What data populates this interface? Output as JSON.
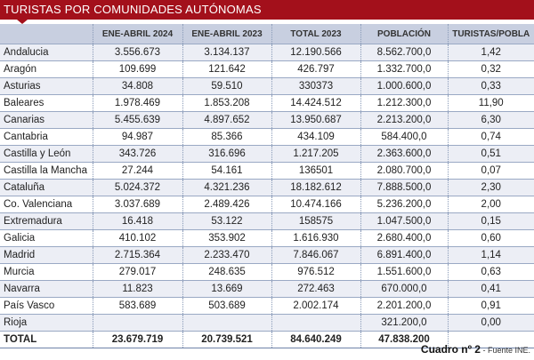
{
  "title": "TURISTAS POR COMUNIDADES AUTÓNOMAS",
  "columns": [
    "",
    "ENE-ABRIL 2024",
    "ENE-ABRIL 2023",
    "TOTAL 2023",
    "POBLACIÓN",
    "TURISTAS/POBLA"
  ],
  "rows": [
    [
      "Andalucia",
      "3.556.673",
      "3.134.137",
      "12.190.566",
      "8.562.700,0",
      "1,42"
    ],
    [
      "Aragón",
      "109.699",
      "121.642",
      "426.797",
      "1.332.700,0",
      "0,32"
    ],
    [
      "Asturias",
      "34.808",
      "59.510",
      "330373",
      "1.000.600,0",
      "0,33"
    ],
    [
      "Baleares",
      "1.978.469",
      "1.853.208",
      "14.424.512",
      "1.212.300,0",
      "11,90"
    ],
    [
      "Canarias",
      "5.455.639",
      "4.897.652",
      "13.950.687",
      "2.213.200,0",
      "6,30"
    ],
    [
      "Cantabria",
      "94.987",
      "85.366",
      "434.109",
      "584.400,0",
      "0,74"
    ],
    [
      "Castilla y León",
      "343.726",
      "316.696",
      "1.217.205",
      "2.363.600,0",
      "0,51"
    ],
    [
      "Castilla la Mancha",
      "27.244",
      "54.161",
      "136501",
      "2.080.700,0",
      "0,07"
    ],
    [
      "Cataluña",
      "5.024.372",
      "4.321.236",
      "18.182.612",
      "7.888.500,0",
      "2,30"
    ],
    [
      "Co. Valenciana",
      "3.037.689",
      "2.489.426",
      "10.474.166",
      "5.236.200,0",
      "2,00"
    ],
    [
      "Extremadura",
      "16.418",
      "53.122",
      "158575",
      "1.047.500,0",
      "0,15"
    ],
    [
      "Galicia",
      "410.102",
      "353.902",
      "1.616.930",
      "2.680.400,0",
      "0,60"
    ],
    [
      "Madrid",
      "2.715.364",
      "2.233.470",
      "7.846.067",
      "6.891.400,0",
      "1,14"
    ],
    [
      "Murcia",
      "279.017",
      "248.635",
      "976.512",
      "1.551.600,0",
      "0,63"
    ],
    [
      "Navarra",
      "11.823",
      "13.669",
      "272.463",
      "670.000,0",
      "0,41"
    ],
    [
      "País Vasco",
      "583.689",
      "503.689",
      "2.002.174",
      "2.201.200,0",
      "0,91"
    ],
    [
      "Rioja",
      "",
      "",
      "",
      "321.200,0",
      "0,00"
    ]
  ],
  "total": [
    "TOTAL",
    "23.679.719",
    "20.739.521",
    "84.640.249",
    "47.838.200",
    ""
  ],
  "footer": {
    "label": "Cuadro nº 2",
    "source": " - Fuente INE."
  },
  "colors": {
    "title_bg": "#a3101b",
    "header_bg": "#c8cfe0",
    "alt_row": "#eceef5"
  }
}
